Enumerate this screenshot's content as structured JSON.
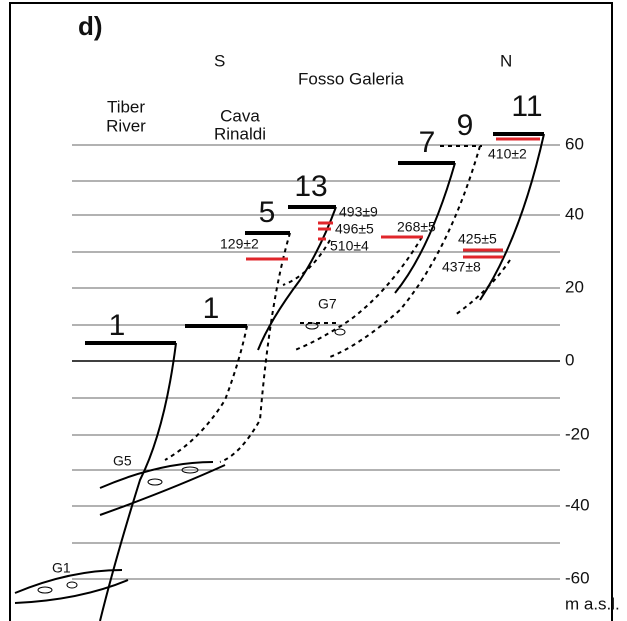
{
  "panel_label": "d)",
  "directions": {
    "south": "S",
    "site": "Fosso Galeria",
    "north": "N"
  },
  "localities": {
    "tiber": [
      "Tiber",
      "River"
    ],
    "cava": [
      "Cava",
      "Rinaldi"
    ]
  },
  "terraces": [
    "1",
    "1",
    "5",
    "13",
    "7",
    "9",
    "11"
  ],
  "ages": [
    "493±9",
    "496±5",
    "510±4",
    "129±2",
    "268±5",
    "425±5",
    "437±8",
    "410±2"
  ],
  "gravels": [
    "G7",
    "G5",
    "G1"
  ],
  "axis": {
    "ticks": [
      60,
      40,
      20,
      0,
      -20,
      -40,
      -60
    ],
    "unit": "m a.s.l."
  }
}
